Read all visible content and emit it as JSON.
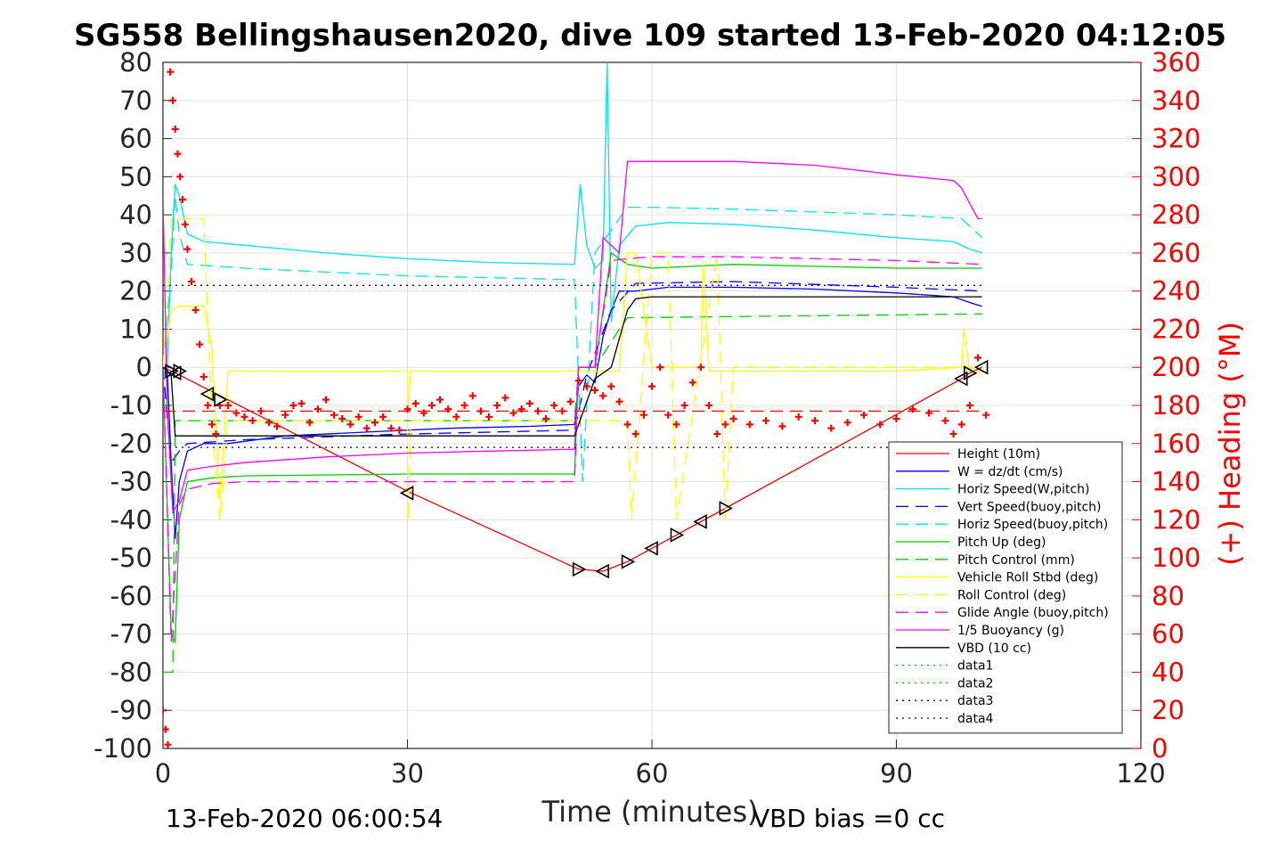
{
  "chart_data": {
    "type": "line",
    "title": "SG558 Bellingshausen2020, dive 109 started 13-Feb-2020 04:12:05",
    "xlabel": "Time (minutes)",
    "ylabel": "",
    "y2label": "(+) Heading (°M)",
    "xlim": [
      0,
      120
    ],
    "ylim": [
      -100,
      80
    ],
    "y2lim": [
      0,
      360
    ],
    "xticks": [
      "0",
      "30",
      "60",
      "90",
      "120"
    ],
    "yticks": [
      "80",
      "70",
      "60",
      "50",
      "40",
      "30",
      "20",
      "10",
      "0",
      "-10",
      "-20",
      "-30",
      "-40",
      "-50",
      "-60",
      "-70",
      "-80",
      "-90",
      "-100"
    ],
    "y2ticks": [
      "360",
      "340",
      "320",
      "300",
      "280",
      "260",
      "240",
      "220",
      "200",
      "180",
      "160",
      "140",
      "120",
      "100",
      "80",
      "60",
      "40",
      "20",
      "0"
    ],
    "grid": true,
    "legend_position": "lower-right",
    "footer_left": "13-Feb-2020 06:00:54",
    "footer_right": "VBD bias =0 cc",
    "colors": {
      "red": "#ff0000",
      "blue": "#0000ff",
      "cyan": "#00e5e5",
      "navy": "#00008b",
      "green": "#00cc00",
      "yellow": "#ffff00",
      "magenta": "#ff00ff",
      "black": "#000000"
    },
    "series": [
      {
        "name": "Height (10m)",
        "color": "#ff0000",
        "style": "solid",
        "x": [
          0,
          2,
          30,
          51,
          54,
          57,
          60,
          63,
          66,
          69,
          98,
          99,
          100.5
        ],
        "y": [
          0,
          -2,
          -32.5,
          -53,
          -53.5,
          -51,
          -47.5,
          -44,
          -40.5,
          -37,
          -3,
          -1.5,
          0
        ]
      },
      {
        "name": "W = dz/dt (cm/s)",
        "color": "#0000ff",
        "style": "solid",
        "x": [
          0,
          0.5,
          1,
          1.5,
          2,
          3,
          5,
          8,
          15,
          25,
          35,
          45,
          50.5,
          51,
          52,
          53,
          54,
          55,
          56,
          58,
          62,
          70,
          80,
          90,
          97,
          99,
          100.5
        ],
        "y": [
          -2,
          0,
          -25,
          -45,
          -30,
          -22,
          -20,
          -20,
          -18,
          -17,
          -16,
          -15.5,
          -15,
          -5,
          -2,
          -4,
          8,
          15,
          20,
          20,
          21,
          21,
          20.5,
          19.5,
          18.5,
          17,
          16
        ]
      },
      {
        "name": "Horiz Speed(W,pitch)",
        "color": "#00e5e5",
        "style": "solid",
        "x": [
          0,
          0.5,
          1,
          1.5,
          2,
          3,
          5,
          10,
          20,
          30,
          40,
          50.5,
          51.2,
          52,
          53,
          54,
          54.5,
          55,
          56,
          58,
          62,
          70,
          80,
          90,
          97,
          99,
          100.5
        ],
        "y": [
          -2,
          0,
          30,
          48,
          45,
          35,
          33,
          32,
          30,
          28.5,
          27.5,
          27,
          48,
          32,
          26,
          28,
          80,
          12,
          32,
          37,
          38,
          37.5,
          36,
          34,
          33,
          31,
          30
        ]
      },
      {
        "name": "Vert Speed(buoy,pitch)",
        "color": "#0000ff",
        "style": "dashed",
        "x": [
          0,
          1,
          2,
          3,
          10,
          30,
          50.5,
          52,
          55,
          58,
          70,
          90,
          100.5
        ],
        "y": [
          0,
          -25,
          -22,
          -20,
          -19,
          -17.5,
          -16.5,
          -2,
          15,
          22,
          22.5,
          21,
          20
        ]
      },
      {
        "name": "Horiz Speed(buoy,pitch)",
        "color": "#00e5e5",
        "style": "dashed",
        "x": [
          0,
          1,
          1.5,
          2,
          3,
          10,
          30,
          50.5,
          51.5,
          53,
          55,
          57,
          60,
          70,
          90,
          98,
          100.5
        ],
        "y": [
          0,
          25,
          45,
          35,
          27,
          26,
          24,
          23,
          -30,
          30,
          36,
          42,
          42,
          41.5,
          40,
          39,
          34
        ]
      },
      {
        "name": "Pitch Up (deg)",
        "color": "#00cc00",
        "style": "solid",
        "x": [
          0,
          1,
          1.5,
          2,
          3,
          6,
          10,
          30,
          50.5,
          51,
          53,
          55,
          57,
          60,
          70,
          90,
          100.5
        ],
        "y": [
          0,
          -70,
          -72,
          -40,
          -30,
          -29,
          -28.5,
          -28,
          -28,
          0,
          0,
          30,
          27,
          26,
          27,
          26,
          26
        ]
      },
      {
        "name": "Pitch Control (mm)",
        "color": "#00cc00",
        "style": "dashed",
        "x": [
          0,
          0.5,
          1.2,
          1.5,
          2,
          50.5,
          51,
          53,
          56,
          57,
          100.5
        ],
        "y": [
          -80,
          -80,
          -80,
          -14,
          -14,
          -14,
          0,
          0,
          10,
          13,
          14
        ]
      },
      {
        "name": "Vehicle Roll Stbd (deg)",
        "color": "#ffff00",
        "style": "solid",
        "x": [
          0,
          1,
          2,
          5,
          6,
          7,
          8,
          30,
          30.1,
          30.4,
          51,
          53,
          56,
          57,
          58,
          60,
          66,
          66.3,
          67,
          90,
          98,
          98.3,
          99,
          100.5
        ],
        "y": [
          0,
          15,
          16,
          16,
          5,
          -35,
          -1,
          -1,
          -10,
          -1,
          -1,
          -1,
          -1,
          30,
          30,
          0,
          0,
          28,
          -1,
          -1,
          0,
          10,
          -1,
          -1
        ]
      },
      {
        "name": "Roll Control (deg)",
        "color": "#ffff00",
        "style": "dashed",
        "x": [
          0,
          1,
          2,
          5,
          6,
          7,
          8,
          30,
          30.1,
          30.4,
          51,
          57,
          57.5,
          60,
          62,
          63,
          68,
          69,
          70,
          90,
          98,
          99,
          100.5
        ],
        "y": [
          0,
          39,
          39,
          39,
          -14,
          -40,
          -14,
          -14,
          -40,
          -14,
          -14,
          -14,
          -40,
          30,
          30,
          -40,
          30,
          -40,
          0,
          0,
          0,
          0,
          -1
        ]
      },
      {
        "name": "Glide Angle (buoy,pitch)",
        "color": "#ff00ff",
        "style": "dashed",
        "x": [
          0,
          1,
          2,
          3,
          6,
          10,
          30,
          50.5,
          51,
          53,
          55,
          57,
          60,
          70,
          90,
          100.5
        ],
        "y": [
          0,
          -72,
          -36,
          -32,
          -30.5,
          -30,
          -30,
          -30,
          0,
          0,
          28,
          28.5,
          29,
          29,
          28,
          27
        ]
      },
      {
        "name": "1/5 Buoyancy (g)",
        "color": "#ff00ff",
        "style": "solid",
        "x": [
          0,
          0.5,
          1.2,
          2,
          3,
          6,
          10,
          20,
          30,
          40,
          50.5,
          51,
          53,
          54,
          56,
          57,
          60,
          70,
          80,
          90,
          97,
          98,
          100,
          100.5
        ],
        "y": [
          45,
          -10,
          -38,
          -35,
          -27,
          -26,
          -25,
          -23.5,
          -22.5,
          -22,
          -21.5,
          0,
          0,
          34,
          30,
          54,
          54,
          54,
          53,
          50.5,
          49,
          47,
          39,
          39
        ]
      },
      {
        "name": "VBD (10 cc)",
        "color": "#000000",
        "style": "solid",
        "x": [
          0,
          1,
          1.5,
          2,
          50.5,
          53,
          55,
          57,
          58,
          60,
          98,
          100.5
        ],
        "y": [
          0,
          -2,
          -18,
          -18,
          -18,
          -3,
          0,
          15,
          18,
          18.5,
          18.5,
          18.5
        ]
      },
      {
        "name": "data1",
        "color": "#00cc00",
        "style": "dotted",
        "x": [],
        "y": []
      },
      {
        "name": "data2",
        "color": "#00cc00",
        "style": "dotted",
        "x": [],
        "y": []
      },
      {
        "name": "data3",
        "color": "#00008b",
        "style": "dotted",
        "x": [
          0,
          100.5
        ],
        "y": [
          21.5,
          21.5
        ]
      },
      {
        "name": "data4",
        "color": "#00008b",
        "style": "dotted",
        "x": [
          0,
          100.5
        ],
        "y": [
          -21,
          -21
        ]
      },
      {
        "name": "",
        "color": "#ff0000",
        "style": "dashed",
        "x": [
          0,
          100.5
        ],
        "y": [
          -11.5,
          -11.5
        ]
      }
    ],
    "heading": {
      "axis": "right",
      "marker": "+",
      "color": "#ff0000",
      "x": [
        0,
        0.3,
        0.6,
        0.9,
        1.2,
        1.5,
        1.8,
        2.1,
        2.4,
        2.7,
        3,
        3.5,
        4,
        4.5,
        5,
        5.5,
        6,
        6.5,
        7,
        8,
        9,
        10,
        11,
        12,
        13,
        14,
        15,
        16,
        17,
        18,
        19,
        20,
        21,
        22,
        23,
        24,
        25,
        26,
        27,
        28,
        29,
        30,
        31,
        32,
        33,
        34,
        35,
        36,
        37,
        38,
        39,
        40,
        41,
        42,
        43,
        44,
        45,
        46,
        47,
        48,
        49,
        50,
        51,
        52,
        53,
        54,
        55,
        56,
        57,
        58,
        59,
        60,
        61,
        62,
        63,
        64,
        65,
        66,
        67,
        68,
        69,
        70,
        72,
        74,
        76,
        78,
        80,
        82,
        84,
        86,
        88,
        90,
        92,
        94,
        96,
        97,
        98,
        99,
        100,
        101
      ],
      "y": [
        20,
        10,
        2,
        355,
        340,
        325,
        312,
        300,
        288,
        275,
        262,
        245,
        230,
        212,
        195,
        180,
        170,
        165,
        180,
        180,
        176,
        174,
        172,
        177,
        171,
        169,
        175,
        180,
        181,
        171,
        178,
        183,
        175,
        173,
        170,
        174,
        168,
        171,
        174,
        168,
        167,
        178,
        181,
        176,
        180,
        183,
        178,
        174,
        180,
        185,
        177,
        174,
        180,
        184,
        176,
        178,
        181,
        177,
        173,
        180,
        177,
        182,
        193,
        190,
        188,
        185,
        190,
        182,
        170,
        165,
        175,
        190,
        200,
        175,
        170,
        180,
        192,
        200,
        180,
        165,
        170,
        173,
        170,
        172,
        169,
        174,
        172,
        168,
        171,
        175,
        170,
        173,
        178,
        176,
        172,
        165,
        170,
        180,
        205,
        175
      ]
    },
    "markers": {
      "name": "Height (10m) markers",
      "shape": "triangle",
      "color": "#000000",
      "x": [
        1,
        1.5,
        2,
        5.5,
        7,
        30,
        51,
        54,
        57,
        60,
        63,
        66,
        69,
        98,
        99,
        100.5
      ],
      "y": [
        -1,
        -1.5,
        -1,
        -7,
        -8.5,
        -33,
        -53,
        -53.5,
        -51,
        -47.5,
        -44,
        -40.5,
        -37,
        -3,
        -1.5,
        0
      ]
    }
  }
}
